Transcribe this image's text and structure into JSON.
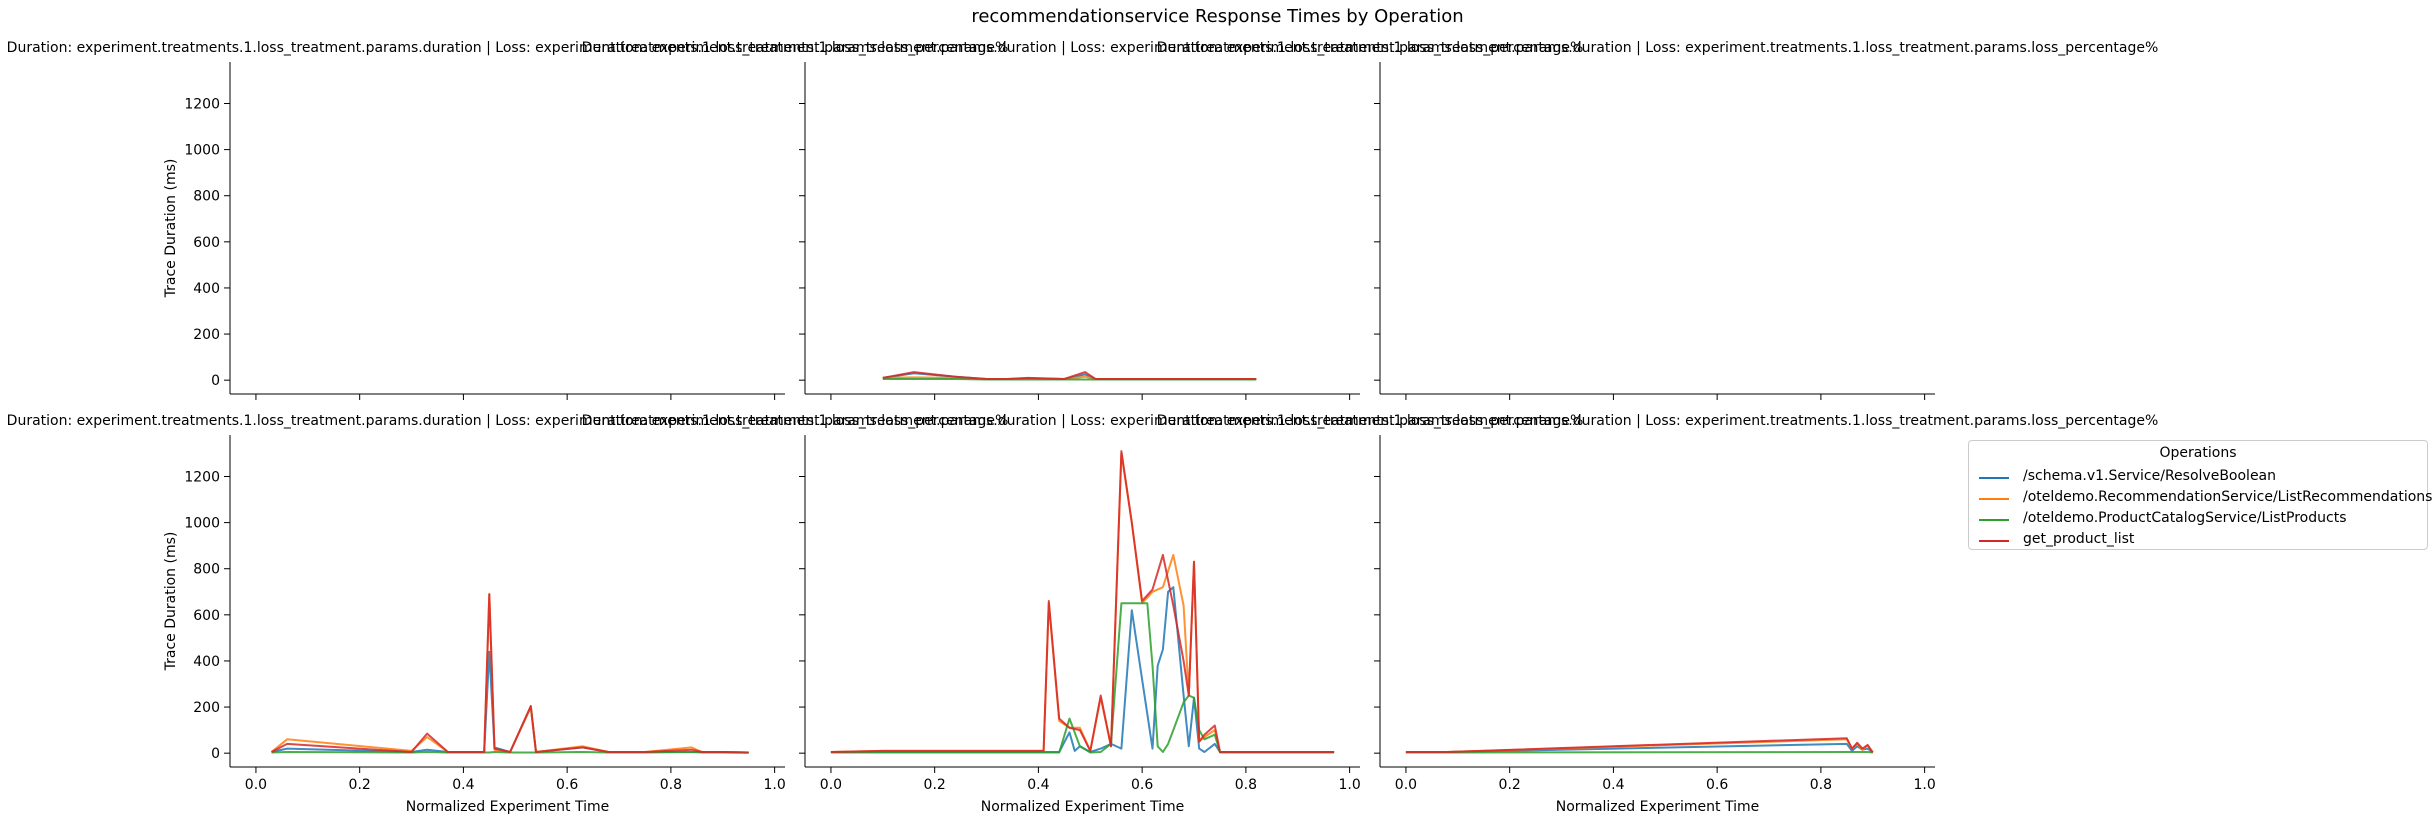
{
  "suptitle": "recommendationservice Response Times by Operation",
  "legend": {
    "title": "Operations",
    "entries": [
      {
        "name": "/schema.v1.Service/ResolveBoolean",
        "color": "#1f77b4"
      },
      {
        "name": "/oteldemo.RecommendationService/ListRecommendations",
        "color": "#ff7f0e"
      },
      {
        "name": "/oteldemo.ProductCatalogService/ListProducts",
        "color": "#2ca02c"
      },
      {
        "name": "get_product_list",
        "color": "#d62728"
      }
    ]
  },
  "chart_data": [
    {
      "type": "line",
      "title": "Duration: experiment.treatments.1.loss_treatment.params.duration | Loss: experiment.treatments.1.loss_treatment.params.loss_percentage%",
      "xlabel": "",
      "ylabel": "Trace Duration (ms)",
      "xlim": [
        -0.05,
        1.02
      ],
      "ylim": [
        -60,
        1380
      ],
      "xticks": [
        "0.0",
        "0.2",
        "0.4",
        "0.6",
        "0.8",
        "1.0"
      ],
      "yticks": [
        "0",
        "200",
        "400",
        "600",
        "800",
        "1000",
        "1200"
      ],
      "show_xticklabels": false,
      "show_yticklabels": true,
      "series": []
    },
    {
      "type": "line",
      "title": "Duration: experiment.treatments.1.loss_treatment.params.duration | Loss: experiment.treatments.1.loss_treatment.params.loss_percentage%",
      "xlabel": "",
      "ylabel": "",
      "xlim": [
        -0.05,
        1.02
      ],
      "ylim": [
        -60,
        1380
      ],
      "xticks": [
        "0.0",
        "0.2",
        "0.4",
        "0.6",
        "0.8",
        "1.0"
      ],
      "yticks": [
        "0",
        "200",
        "400",
        "600",
        "800",
        "1000",
        "1200"
      ],
      "show_xticklabels": false,
      "show_yticklabels": false,
      "series": [
        {
          "name": "/schema.v1.Service/ResolveBoolean",
          "color": "#1f77b4",
          "x": [
            0.1,
            0.16,
            0.24,
            0.3,
            0.34,
            0.38,
            0.45,
            0.49,
            0.51,
            0.6,
            0.82
          ],
          "y": [
            10,
            30,
            15,
            5,
            5,
            8,
            5,
            25,
            5,
            5,
            5
          ]
        },
        {
          "name": "/oteldemo.RecommendationService/ListRecommendations",
          "color": "#ff7f0e",
          "x": [
            0.1,
            0.16,
            0.24,
            0.3,
            0.34,
            0.38,
            0.45,
            0.49,
            0.51,
            0.6,
            0.82
          ],
          "y": [
            10,
            12,
            10,
            5,
            5,
            5,
            5,
            15,
            5,
            5,
            5
          ]
        },
        {
          "name": "/oteldemo.ProductCatalogService/ListProducts",
          "color": "#2ca02c",
          "x": [
            0.1,
            0.16,
            0.24,
            0.3,
            0.34,
            0.38,
            0.45,
            0.49,
            0.51,
            0.6,
            0.82
          ],
          "y": [
            5,
            5,
            5,
            3,
            3,
            3,
            3,
            3,
            3,
            3,
            3
          ]
        },
        {
          "name": "get_product_list",
          "color": "#d62728",
          "x": [
            0.1,
            0.16,
            0.24,
            0.3,
            0.34,
            0.38,
            0.45,
            0.49,
            0.51,
            0.6,
            0.82
          ],
          "y": [
            10,
            35,
            15,
            5,
            5,
            10,
            5,
            35,
            5,
            5,
            5
          ]
        }
      ]
    },
    {
      "type": "line",
      "title": "Duration: experiment.treatments.1.loss_treatment.params.duration | Loss: experiment.treatments.1.loss_treatment.params.loss_percentage%",
      "xlabel": "",
      "ylabel": "",
      "xlim": [
        -0.05,
        1.02
      ],
      "ylim": [
        -60,
        1380
      ],
      "xticks": [
        "0.0",
        "0.2",
        "0.4",
        "0.6",
        "0.8",
        "1.0"
      ],
      "yticks": [
        "0",
        "200",
        "400",
        "600",
        "800",
        "1000",
        "1200"
      ],
      "show_xticklabels": false,
      "show_yticklabels": false,
      "series": []
    },
    {
      "type": "line",
      "title": "Duration: experiment.treatments.1.loss_treatment.params.duration | Loss: experiment.treatments.1.loss_treatment.params.loss_percentage%",
      "xlabel": "Normalized Experiment Time",
      "ylabel": "Trace Duration (ms)",
      "xlim": [
        -0.05,
        1.02
      ],
      "ylim": [
        -60,
        1380
      ],
      "xticks": [
        "0.0",
        "0.2",
        "0.4",
        "0.6",
        "0.8",
        "1.0"
      ],
      "yticks": [
        "0",
        "200",
        "400",
        "600",
        "800",
        "1000",
        "1200"
      ],
      "show_xticklabels": true,
      "show_yticklabels": true,
      "series": [
        {
          "name": "/schema.v1.Service/ResolveBoolean",
          "color": "#1f77b4",
          "x": [
            0.03,
            0.06,
            0.3,
            0.33,
            0.37,
            0.44,
            0.45,
            0.46,
            0.49,
            0.53,
            0.54,
            0.63,
            0.68,
            0.75,
            0.84,
            0.86,
            0.9,
            0.95
          ],
          "y": [
            5,
            20,
            5,
            15,
            5,
            5,
            440,
            25,
            5,
            200,
            5,
            25,
            5,
            5,
            5,
            5,
            5,
            3
          ]
        },
        {
          "name": "/oteldemo.RecommendationService/ListRecommendations",
          "color": "#ff7f0e",
          "x": [
            0.03,
            0.06,
            0.3,
            0.33,
            0.37,
            0.44,
            0.45,
            0.46,
            0.49,
            0.53,
            0.54,
            0.63,
            0.68,
            0.75,
            0.84,
            0.86,
            0.9,
            0.95
          ],
          "y": [
            5,
            60,
            10,
            70,
            5,
            5,
            690,
            15,
            5,
            200,
            5,
            30,
            5,
            5,
            25,
            5,
            5,
            3
          ]
        },
        {
          "name": "/oteldemo.ProductCatalogService/ListProducts",
          "color": "#2ca02c",
          "x": [
            0.03,
            0.06,
            0.3,
            0.33,
            0.37,
            0.44,
            0.45,
            0.46,
            0.49,
            0.53,
            0.54,
            0.63,
            0.68,
            0.75,
            0.84,
            0.86,
            0.9,
            0.95
          ],
          "y": [
            3,
            5,
            3,
            5,
            3,
            3,
            3,
            5,
            3,
            3,
            3,
            5,
            3,
            3,
            5,
            3,
            3,
            2
          ]
        },
        {
          "name": "get_product_list",
          "color": "#d62728",
          "x": [
            0.03,
            0.06,
            0.3,
            0.33,
            0.37,
            0.44,
            0.45,
            0.46,
            0.49,
            0.53,
            0.54,
            0.63,
            0.68,
            0.75,
            0.84,
            0.86,
            0.9,
            0.95
          ],
          "y": [
            5,
            40,
            5,
            85,
            5,
            5,
            690,
            20,
            5,
            205,
            5,
            25,
            5,
            5,
            15,
            5,
            5,
            3
          ]
        }
      ]
    },
    {
      "type": "line",
      "title": "Duration: experiment.treatments.1.loss_treatment.params.duration | Loss: experiment.treatments.1.loss_treatment.params.loss_percentage%",
      "xlabel": "Normalized Experiment Time",
      "ylabel": "",
      "xlim": [
        -0.05,
        1.02
      ],
      "ylim": [
        -60,
        1380
      ],
      "xticks": [
        "0.0",
        "0.2",
        "0.4",
        "0.6",
        "0.8",
        "1.0"
      ],
      "yticks": [
        "0",
        "200",
        "400",
        "600",
        "800",
        "1000",
        "1200"
      ],
      "show_xticklabels": true,
      "show_yticklabels": false,
      "series": [
        {
          "name": "/schema.v1.Service/ResolveBoolean",
          "color": "#1f77b4",
          "x": [
            0.0,
            0.1,
            0.41,
            0.44,
            0.46,
            0.47,
            0.48,
            0.5,
            0.52,
            0.54,
            0.56,
            0.58,
            0.6,
            0.62,
            0.63,
            0.64,
            0.65,
            0.66,
            0.68,
            0.69,
            0.7,
            0.71,
            0.72,
            0.74,
            0.75,
            0.8,
            0.9,
            0.97
          ],
          "y": [
            5,
            5,
            5,
            5,
            90,
            10,
            30,
            5,
            20,
            40,
            20,
            620,
            320,
            20,
            380,
            450,
            700,
            720,
            250,
            30,
            240,
            20,
            5,
            40,
            5,
            5,
            5,
            5
          ]
        },
        {
          "name": "/oteldemo.RecommendationService/ListRecommendations",
          "color": "#ff7f0e",
          "x": [
            0.0,
            0.1,
            0.41,
            0.42,
            0.44,
            0.46,
            0.48,
            0.5,
            0.52,
            0.54,
            0.56,
            0.58,
            0.6,
            0.62,
            0.64,
            0.66,
            0.68,
            0.69,
            0.7,
            0.71,
            0.72,
            0.74,
            0.75,
            0.8,
            0.9,
            0.97
          ],
          "y": [
            5,
            10,
            10,
            650,
            140,
            110,
            110,
            10,
            240,
            30,
            1300,
            1000,
            650,
            700,
            720,
            860,
            640,
            250,
            830,
            50,
            70,
            100,
            5,
            5,
            5,
            5
          ]
        },
        {
          "name": "/oteldemo.ProductCatalogService/ListProducts",
          "color": "#2ca02c",
          "x": [
            0.0,
            0.1,
            0.41,
            0.44,
            0.46,
            0.48,
            0.5,
            0.52,
            0.54,
            0.56,
            0.58,
            0.6,
            0.61,
            0.62,
            0.63,
            0.64,
            0.65,
            0.66,
            0.68,
            0.69,
            0.7,
            0.71,
            0.72,
            0.74,
            0.75,
            0.8,
            0.97
          ],
          "y": [
            3,
            3,
            3,
            3,
            150,
            30,
            3,
            5,
            40,
            650,
            650,
            650,
            650,
            380,
            30,
            5,
            40,
            100,
            220,
            250,
            240,
            100,
            60,
            80,
            3,
            3,
            3
          ]
        },
        {
          "name": "get_product_list",
          "color": "#d62728",
          "x": [
            0.0,
            0.1,
            0.41,
            0.42,
            0.44,
            0.46,
            0.48,
            0.5,
            0.52,
            0.54,
            0.56,
            0.58,
            0.6,
            0.62,
            0.64,
            0.66,
            0.68,
            0.69,
            0.7,
            0.71,
            0.72,
            0.74,
            0.75,
            0.8,
            0.9,
            0.97
          ],
          "y": [
            5,
            10,
            10,
            660,
            150,
            110,
            100,
            10,
            250,
            30,
            1310,
            1000,
            660,
            710,
            860,
            640,
            400,
            250,
            830,
            50,
            80,
            120,
            5,
            5,
            5,
            5
          ]
        }
      ]
    },
    {
      "type": "line",
      "title": "Duration: experiment.treatments.1.loss_treatment.params.duration | Loss: experiment.treatments.1.loss_treatment.params.loss_percentage%",
      "xlabel": "Normalized Experiment Time",
      "ylabel": "",
      "xlim": [
        -0.05,
        1.02
      ],
      "ylim": [
        -60,
        1380
      ],
      "xticks": [
        "0.0",
        "0.2",
        "0.4",
        "0.6",
        "0.8",
        "1.0"
      ],
      "yticks": [
        "0",
        "200",
        "400",
        "600",
        "800",
        "1000",
        "1200"
      ],
      "show_xticklabels": true,
      "show_yticklabels": false,
      "series": [
        {
          "name": "/schema.v1.Service/ResolveBoolean",
          "color": "#1f77b4",
          "x": [
            0.0,
            0.08,
            0.85,
            0.86,
            0.87,
            0.88,
            0.89,
            0.9
          ],
          "y": [
            5,
            5,
            40,
            10,
            30,
            15,
            20,
            3
          ]
        },
        {
          "name": "/oteldemo.RecommendationService/ListRecommendations",
          "color": "#ff7f0e",
          "x": [
            0.0,
            0.08,
            0.85,
            0.86,
            0.87,
            0.88,
            0.89,
            0.9
          ],
          "y": [
            5,
            5,
            60,
            20,
            40,
            15,
            35,
            3
          ]
        },
        {
          "name": "/oteldemo.ProductCatalogService/ListProducts",
          "color": "#2ca02c",
          "x": [
            0.0,
            0.08,
            0.85,
            0.86,
            0.87,
            0.88,
            0.89,
            0.9
          ],
          "y": [
            3,
            3,
            5,
            5,
            5,
            5,
            5,
            3
          ]
        },
        {
          "name": "get_product_list",
          "color": "#d62728",
          "x": [
            0.0,
            0.08,
            0.85,
            0.86,
            0.87,
            0.88,
            0.89,
            0.9
          ],
          "y": [
            5,
            5,
            65,
            20,
            45,
            20,
            35,
            3
          ]
        }
      ]
    }
  ]
}
